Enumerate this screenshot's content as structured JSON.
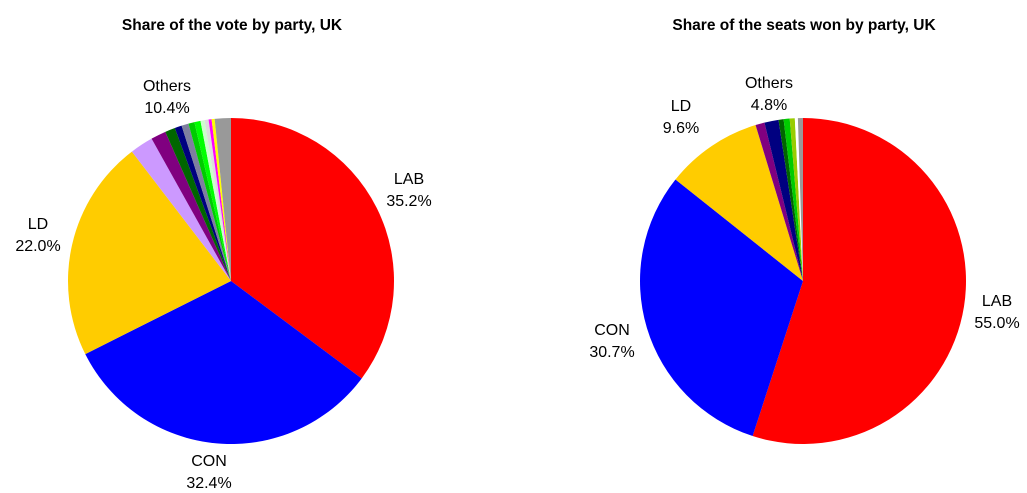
{
  "chart_data": [
    {
      "type": "pie",
      "title": "Share of the vote by party, UK",
      "slices": [
        {
          "name": "LAB",
          "value": 35.2,
          "color": "#ff0000",
          "label": "35.2%"
        },
        {
          "name": "CON",
          "value": 32.4,
          "color": "#0000ff",
          "label": "32.4%"
        },
        {
          "name": "LD",
          "value": 22.0,
          "color": "#ffcc00",
          "label": "22.0%"
        },
        {
          "name": "",
          "value": 2.3,
          "color": "#cc99ff"
        },
        {
          "name": "",
          "value": 1.5,
          "color": "#800080"
        },
        {
          "name": "",
          "value": 1.0,
          "color": "#006600"
        },
        {
          "name": "",
          "value": 0.7,
          "color": "#000080"
        },
        {
          "name": "",
          "value": 0.7,
          "color": "#7f7f9f"
        },
        {
          "name": "",
          "value": 0.6,
          "color": "#00cc00"
        },
        {
          "name": "",
          "value": 0.6,
          "color": "#00ff00"
        },
        {
          "name": "",
          "value": 0.4,
          "color": "#ccffcc"
        },
        {
          "name": "",
          "value": 0.4,
          "color": "#dddddd"
        },
        {
          "name": "",
          "value": 0.3,
          "color": "#ff00ff"
        },
        {
          "name": "",
          "value": 0.3,
          "color": "#ffff00"
        },
        {
          "name": "",
          "value": 1.6,
          "color": "#999999"
        }
      ],
      "labels": [
        {
          "name": "LAB",
          "pct": "35.2%"
        },
        {
          "name": "CON",
          "pct": "32.4%"
        },
        {
          "name": "LD",
          "pct": "22.0%"
        },
        {
          "name": "Others",
          "pct": "10.4%"
        }
      ]
    },
    {
      "type": "pie",
      "title": "Share of the seats won by party, UK",
      "slices": [
        {
          "name": "LAB",
          "value": 55.0,
          "color": "#ff0000",
          "label": "55.0%"
        },
        {
          "name": "CON",
          "value": 30.7,
          "color": "#0000ff",
          "label": "30.7%"
        },
        {
          "name": "LD",
          "value": 9.6,
          "color": "#ffcc00",
          "label": "9.6%"
        },
        {
          "name": "",
          "value": 0.9,
          "color": "#800080"
        },
        {
          "name": "",
          "value": 1.4,
          "color": "#000080"
        },
        {
          "name": "",
          "value": 0.5,
          "color": "#006600"
        },
        {
          "name": "",
          "value": 0.6,
          "color": "#00cc00"
        },
        {
          "name": "",
          "value": 0.5,
          "color": "#99cc00"
        },
        {
          "name": "",
          "value": 0.3,
          "color": "#ffffff"
        },
        {
          "name": "",
          "value": 0.5,
          "color": "#999999"
        }
      ],
      "labels": [
        {
          "name": "LAB",
          "pct": "55.0%"
        },
        {
          "name": "CON",
          "pct": "30.7%"
        },
        {
          "name": "LD",
          "pct": "9.6%"
        },
        {
          "name": "Others",
          "pct": "4.8%"
        }
      ]
    }
  ]
}
